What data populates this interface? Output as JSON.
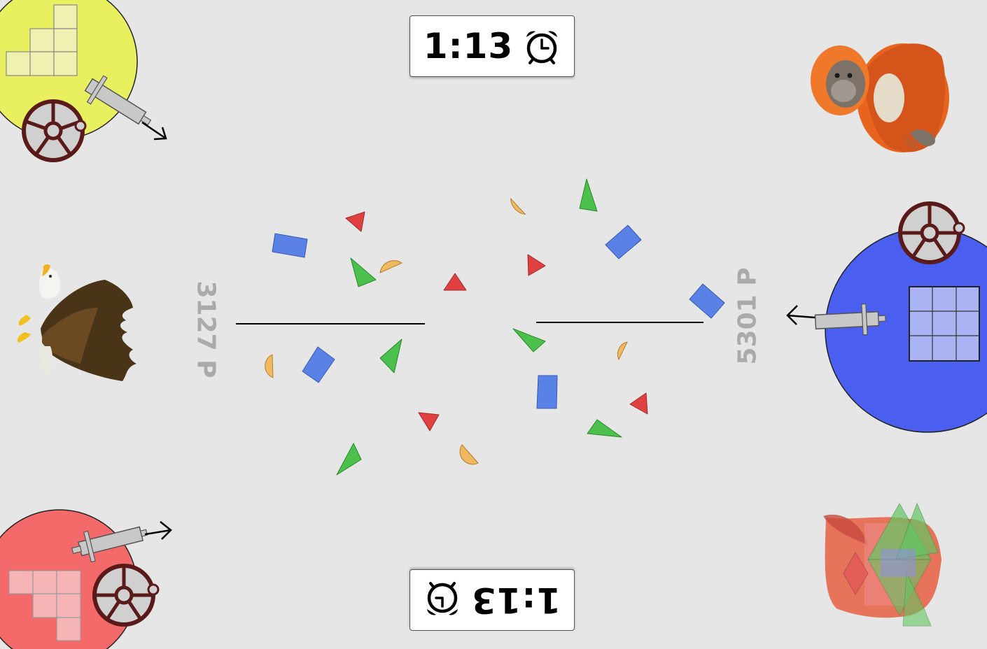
{
  "timers": {
    "top": {
      "value": "1:13",
      "icon": "alarm-clock-icon"
    },
    "bottom": {
      "value": "1:13",
      "icon": "alarm-clock-icon",
      "orientation": "upside-down"
    }
  },
  "scores": {
    "left": {
      "value": "3127 P"
    },
    "right": {
      "value": "5301 P"
    }
  },
  "players": [
    {
      "corner": "top-left",
      "color": "#e8f060",
      "avatar": "grid-blocks-icon"
    },
    {
      "corner": "bottom-left",
      "color": "#f46a6a",
      "avatar": "grid-blocks-icon"
    },
    {
      "corner": "right",
      "color": "#4a5ef0",
      "avatar": "grid-blocks-icon"
    }
  ],
  "animals": [
    "orangutan-icon",
    "eagle-icon",
    "fox-shapes-icon"
  ],
  "colors": {
    "background": "#e6e6e6",
    "triangle_red": "#e04040",
    "triangle_green": "#4cc04c",
    "rect_blue": "#5a82e6",
    "halfcircle_orange": "#f0b860"
  }
}
